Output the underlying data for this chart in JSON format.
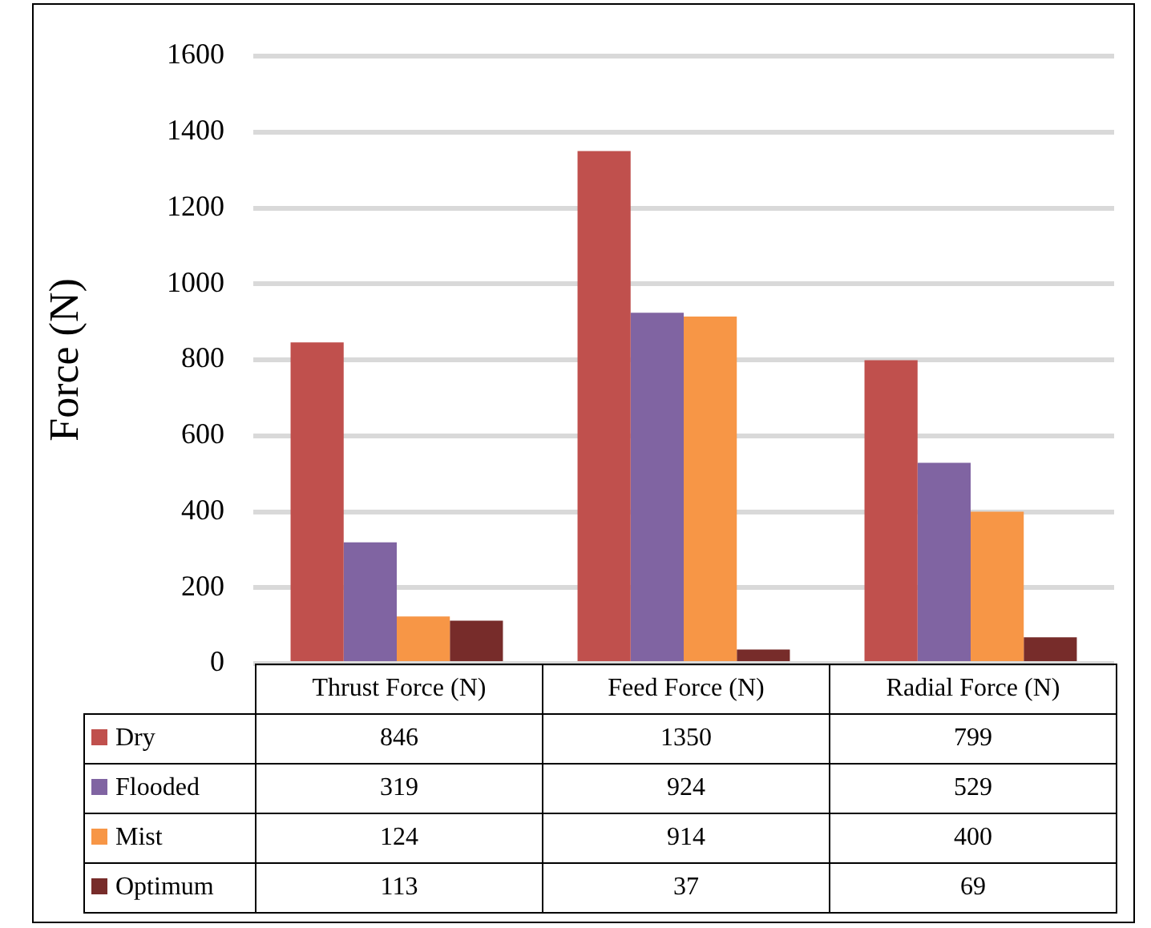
{
  "chart_data": {
    "type": "bar",
    "ylabel": "Force (N)",
    "categories": [
      "Thrust Force (N)",
      "Feed Force (N)",
      "Radial Force (N)"
    ],
    "series": [
      {
        "name": "Dry",
        "color": "#c0504d",
        "values": [
          846,
          1350,
          799
        ]
      },
      {
        "name": "Flooded",
        "color": "#8064a2",
        "values": [
          319,
          924,
          529
        ]
      },
      {
        "name": "Mist",
        "color": "#f79646",
        "values": [
          124,
          914,
          400
        ]
      },
      {
        "name": "Optimum",
        "color": "#772c2a",
        "values": [
          113,
          37,
          69
        ]
      }
    ],
    "ylim": [
      0,
      1600
    ],
    "yticks": [
      0,
      200,
      400,
      600,
      800,
      1000,
      1200,
      1400,
      1600
    ],
    "grid": "y",
    "legend": "bottom",
    "data_labels": true
  }
}
